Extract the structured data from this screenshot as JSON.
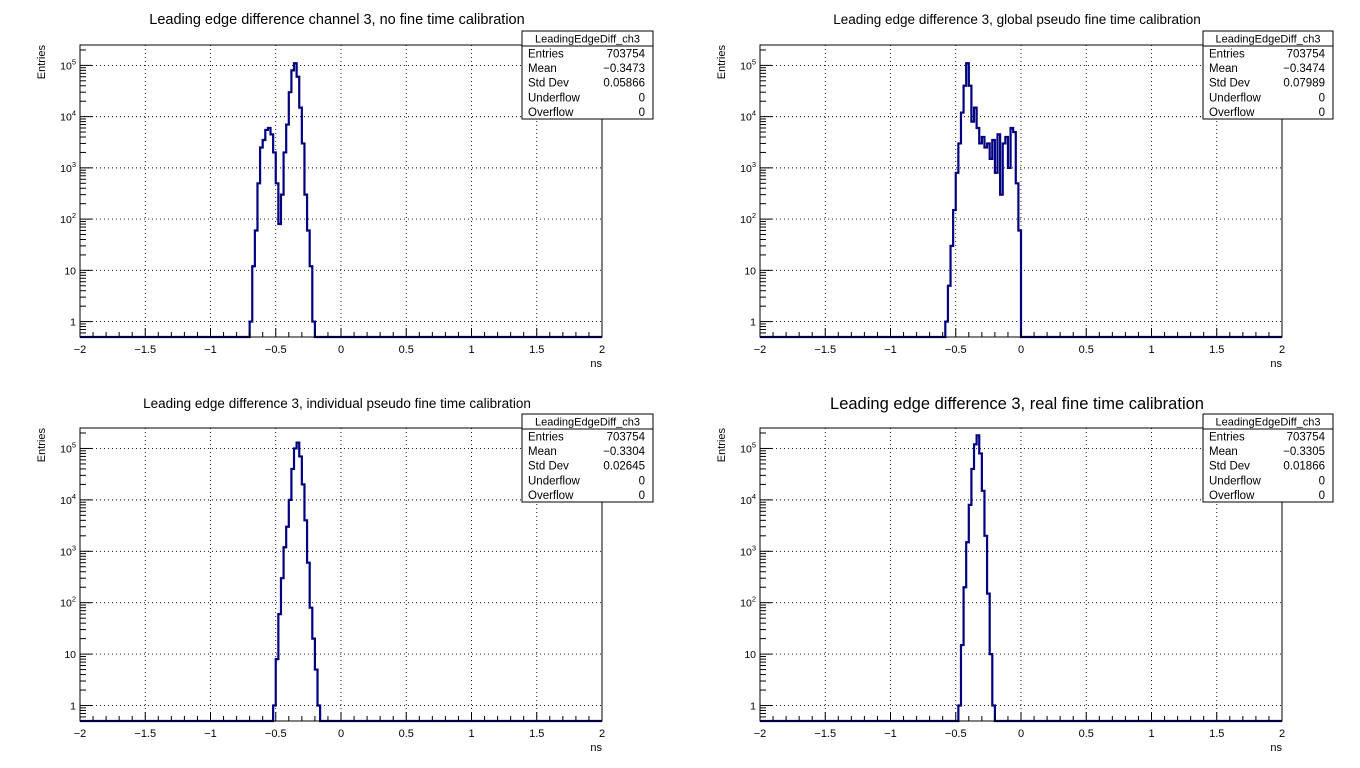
{
  "colors": {
    "line": "#000080",
    "grid": "#000000",
    "frame": "#000000",
    "background": "#ffffff"
  },
  "chart_data": [
    {
      "type": "histogram",
      "title": "Leading edge difference channel 3, no fine time calibration",
      "xlabel": "ns",
      "ylabel": "Entries",
      "xlim": [
        -2,
        2
      ],
      "ylim": [
        0.5,
        250000
      ],
      "yscale": "log",
      "grid": true,
      "x_ticks": [
        -2,
        -1.5,
        -1,
        -0.5,
        0,
        0.5,
        1,
        1.5,
        2
      ],
      "x_tick_labels": [
        "−2",
        "−1.5",
        "−1",
        "−0.5",
        "0",
        "0.5",
        "1",
        "1.5",
        "2"
      ],
      "y_ticks": [
        1,
        10,
        100,
        1000,
        10000,
        100000
      ],
      "y_tick_labels": [
        "1",
        "10",
        "10^2",
        "10^3",
        "10^4",
        "10^5"
      ],
      "stats": {
        "name": "LeadingEdgeDiff_ch3",
        "legend_position": "top-right",
        "rows": [
          [
            "Entries",
            "703754"
          ],
          [
            "Mean",
            "−0.3473"
          ],
          [
            "Std Dev",
            "0.05866"
          ],
          [
            "Underflow",
            "0"
          ],
          [
            "Overflow",
            "0"
          ]
        ]
      },
      "x": [
        -0.69,
        -0.67,
        -0.65,
        -0.63,
        -0.61,
        -0.59,
        -0.57,
        -0.55,
        -0.53,
        -0.51,
        -0.49,
        -0.47,
        -0.45,
        -0.43,
        -0.41,
        -0.39,
        -0.37,
        -0.35,
        -0.33,
        -0.31,
        -0.29,
        -0.27,
        -0.25,
        -0.23,
        -0.21
      ],
      "values": [
        1,
        12,
        60,
        500,
        2500,
        3500,
        5500,
        6000,
        4500,
        2000,
        500,
        80,
        300,
        2000,
        7000,
        30000,
        80000,
        110000,
        60000,
        15000,
        3000,
        300,
        60,
        12,
        1
      ]
    },
    {
      "type": "histogram",
      "title": "Leading edge difference 3, global pseudo fine time calibration",
      "xlabel": "ns",
      "ylabel": "Entries",
      "xlim": [
        -2,
        2
      ],
      "ylim": [
        0.5,
        250000
      ],
      "yscale": "log",
      "grid": true,
      "x_ticks": [
        -2,
        -1.5,
        -1,
        -0.5,
        0,
        0.5,
        1,
        1.5,
        2
      ],
      "x_tick_labels": [
        "−2",
        "−1.5",
        "−1",
        "−0.5",
        "0",
        "0.5",
        "1",
        "1.5",
        "2"
      ],
      "y_ticks": [
        1,
        10,
        100,
        1000,
        10000,
        100000
      ],
      "y_tick_labels": [
        "1",
        "10",
        "10^2",
        "10^3",
        "10^4",
        "10^5"
      ],
      "stats": {
        "name": "LeadingEdgeDiff_ch3",
        "legend_position": "top-right",
        "rows": [
          [
            "Entries",
            "703754"
          ],
          [
            "Mean",
            "−0.3474"
          ],
          [
            "Std Dev",
            "0.07989"
          ],
          [
            "Underflow",
            "0"
          ],
          [
            "Overflow",
            "0"
          ]
        ]
      },
      "x": [
        -0.57,
        -0.55,
        -0.53,
        -0.51,
        -0.49,
        -0.47,
        -0.45,
        -0.43,
        -0.41,
        -0.39,
        -0.37,
        -0.35,
        -0.33,
        -0.31,
        -0.29,
        -0.27,
        -0.25,
        -0.23,
        -0.21,
        -0.19,
        -0.17,
        -0.15,
        -0.13,
        -0.11,
        -0.09,
        -0.07,
        -0.05,
        -0.03,
        -0.01
      ],
      "values": [
        1,
        5,
        30,
        150,
        800,
        3000,
        12000,
        40000,
        110000,
        40000,
        8000,
        15000,
        6000,
        3000,
        4000,
        2500,
        3000,
        1500,
        3500,
        800,
        4500,
        300,
        3000,
        4000,
        1000,
        6000,
        5000,
        500,
        60
      ]
    },
    {
      "type": "histogram",
      "title": "Leading edge difference 3, individual pseudo fine time calibration",
      "xlabel": "ns",
      "ylabel": "Entries",
      "xlim": [
        -2,
        2
      ],
      "ylim": [
        0.5,
        250000
      ],
      "yscale": "log",
      "grid": true,
      "x_ticks": [
        -2,
        -1.5,
        -1,
        -0.5,
        0,
        0.5,
        1,
        1.5,
        2
      ],
      "x_tick_labels": [
        "−2",
        "−1.5",
        "−1",
        "−0.5",
        "0",
        "0.5",
        "1",
        "1.5",
        "2"
      ],
      "y_ticks": [
        1,
        10,
        100,
        1000,
        10000,
        100000
      ],
      "y_tick_labels": [
        "1",
        "10",
        "10^2",
        "10^3",
        "10^4",
        "10^5"
      ],
      "stats": {
        "name": "LeadingEdgeDiff_ch3",
        "legend_position": "top-right",
        "rows": [
          [
            "Entries",
            "703754"
          ],
          [
            "Mean",
            "−0.3304"
          ],
          [
            "Std Dev",
            "0.02645"
          ],
          [
            "Underflow",
            "0"
          ],
          [
            "Overflow",
            "0"
          ]
        ]
      },
      "x": [
        -0.51,
        -0.49,
        -0.47,
        -0.45,
        -0.43,
        -0.41,
        -0.39,
        -0.37,
        -0.35,
        -0.33,
        -0.31,
        -0.29,
        -0.27,
        -0.25,
        -0.23,
        -0.21,
        -0.19,
        -0.17
      ],
      "values": [
        1,
        8,
        60,
        300,
        1200,
        3000,
        10000,
        40000,
        100000,
        130000,
        70000,
        20000,
        4000,
        600,
        80,
        20,
        5,
        1
      ]
    },
    {
      "type": "histogram",
      "title": "Leading edge difference 3, real fine time calibration",
      "xlabel": "ns",
      "ylabel": "Entries",
      "xlim": [
        -2,
        2
      ],
      "ylim": [
        0.5,
        250000
      ],
      "yscale": "log",
      "grid": true,
      "x_ticks": [
        -2,
        -1.5,
        -1,
        -0.5,
        0,
        0.5,
        1,
        1.5,
        2
      ],
      "x_tick_labels": [
        "−2",
        "−1.5",
        "−1",
        "−0.5",
        "0",
        "0.5",
        "1",
        "1.5",
        "2"
      ],
      "y_ticks": [
        1,
        10,
        100,
        1000,
        10000,
        100000
      ],
      "y_tick_labels": [
        "1",
        "10",
        "10^2",
        "10^3",
        "10^4",
        "10^5"
      ],
      "stats": {
        "name": "LeadingEdgeDiff_ch3",
        "legend_position": "top-right",
        "rows": [
          [
            "Entries",
            "703754"
          ],
          [
            "Mean",
            "−0.3305"
          ],
          [
            "Std Dev",
            "0.01866"
          ],
          [
            "Underflow",
            "0"
          ],
          [
            "Overflow",
            "0"
          ]
        ]
      },
      "x": [
        -0.47,
        -0.45,
        -0.43,
        -0.41,
        -0.39,
        -0.37,
        -0.35,
        -0.33,
        -0.31,
        -0.29,
        -0.27,
        -0.25,
        -0.23,
        -0.21
      ],
      "values": [
        1,
        15,
        200,
        1500,
        8000,
        40000,
        120000,
        180000,
        80000,
        15000,
        2000,
        150,
        10,
        1
      ]
    }
  ]
}
